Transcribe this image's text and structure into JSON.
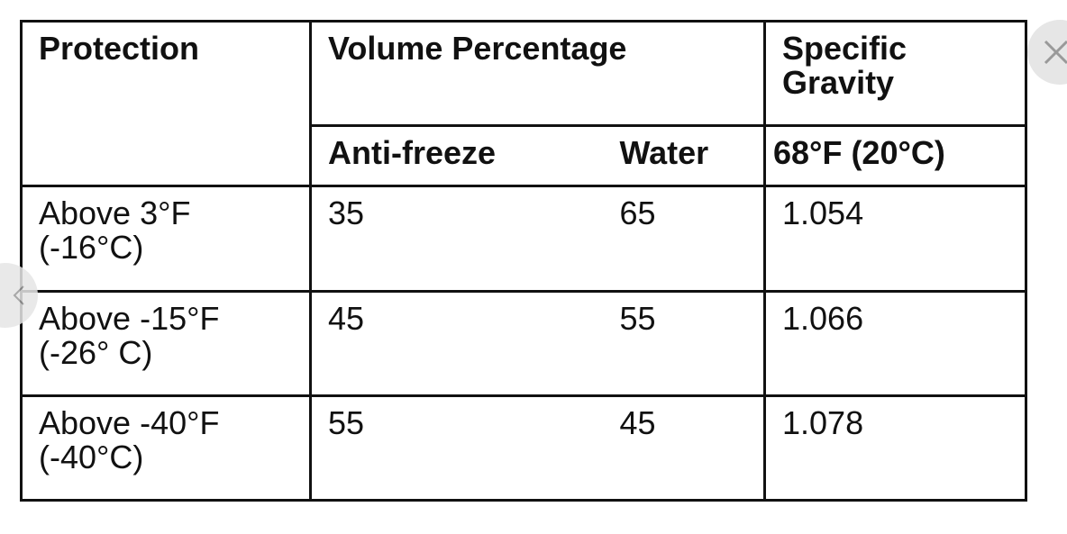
{
  "table": {
    "header": {
      "protection": "Protection",
      "volume_percentage": "Volume Percentage",
      "specific_gravity": "Specific Gravity",
      "anti_freeze": "Anti-freeze",
      "water": "Water",
      "temperature": "68°F (20°C)"
    },
    "rows": [
      [
        "Above 3°F (-16°C)",
        "35",
        "65",
        "1.054"
      ],
      [
        "Above -15°F (-26° C)",
        "45",
        "55",
        "1.066"
      ],
      [
        "Above -40°F (-40°C)",
        "55",
        "45",
        "1.078"
      ]
    ]
  }
}
